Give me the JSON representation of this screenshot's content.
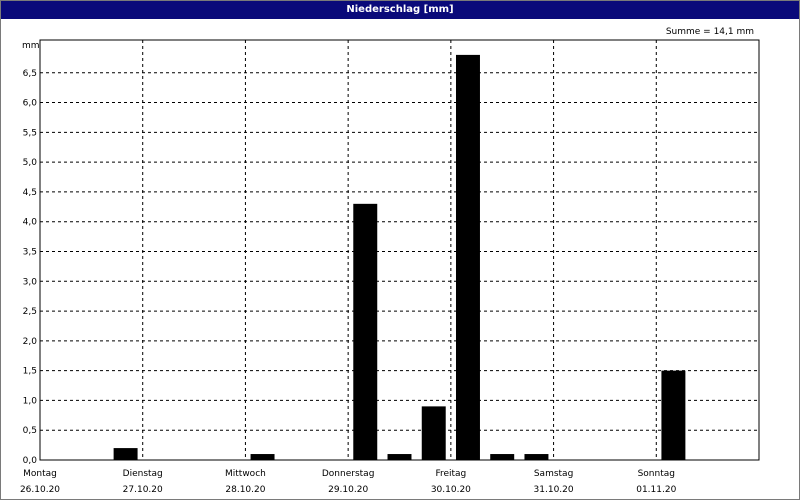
{
  "window": {
    "title": "Niederschlag [mm]"
  },
  "chart_data": {
    "type": "bar",
    "title": "Niederschlag [mm]",
    "ylabel": "mm",
    "summary": "Summe = 14,1 mm",
    "ylim": [
      0,
      7.05
    ],
    "y_ticks": [
      "0,0",
      "0,5",
      "1,0",
      "1,5",
      "2,0",
      "2,5",
      "3,0",
      "3,5",
      "4,0",
      "4,5",
      "5,0",
      "5,5",
      "6,0",
      "6,5"
    ],
    "days": [
      {
        "name": "Montag",
        "date": "26.10.20"
      },
      {
        "name": "Dienstag",
        "date": "27.10.20"
      },
      {
        "name": "Mittwoch",
        "date": "28.10.20"
      },
      {
        "name": "Donnerstag",
        "date": "29.10.20"
      },
      {
        "name": "Freitag",
        "date": "30.10.20"
      },
      {
        "name": "Samstag",
        "date": "31.10.20"
      },
      {
        "name": "Sonntag",
        "date": "01.11.20"
      }
    ],
    "interval_hours": 8,
    "values": [
      0,
      0,
      0.2,
      0,
      0,
      0,
      0.1,
      0,
      0,
      4.3,
      0.1,
      0.9,
      6.8,
      0.1,
      0.1,
      0,
      0,
      0,
      1.5,
      0,
      0
    ],
    "colors": {
      "bar": "#000000",
      "grid": "#000000",
      "title_bg": "#0a0a7a"
    }
  }
}
